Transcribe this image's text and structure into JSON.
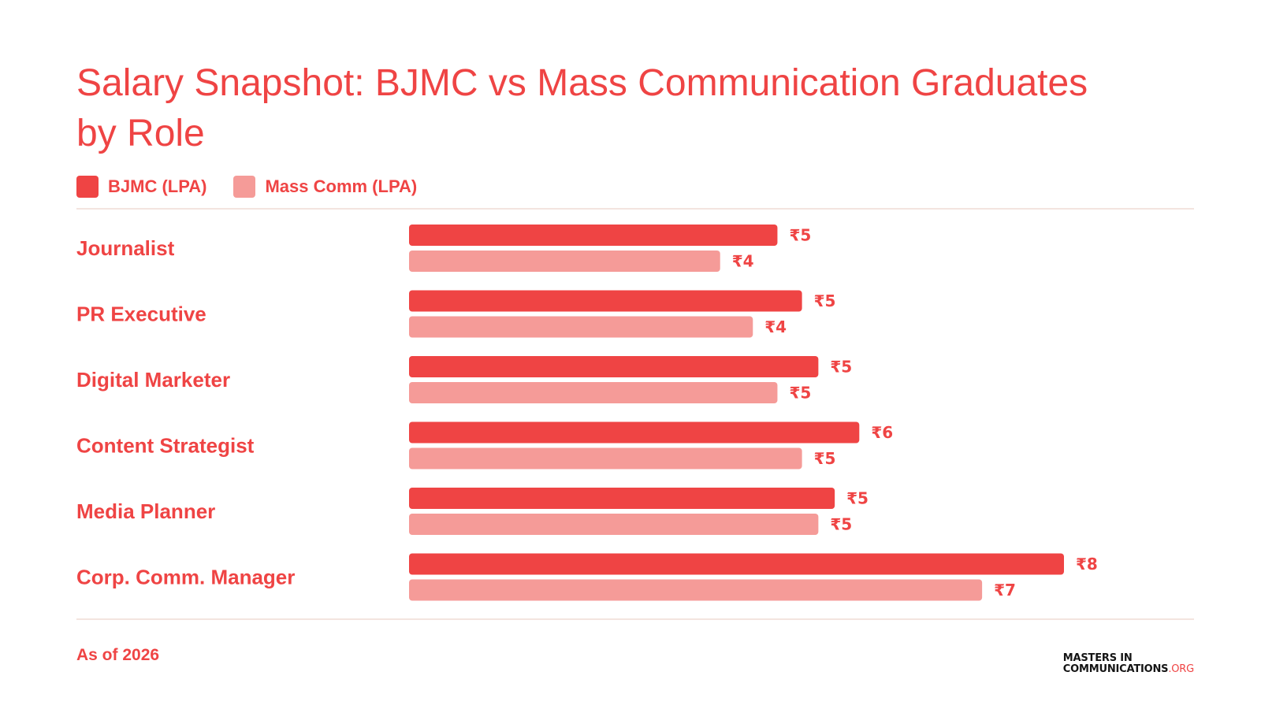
{
  "header": {
    "title": "Salary Snapshot: BJMC vs Mass Communication Graduates by Role"
  },
  "legend": [
    {
      "label": "BJMC (LPA)",
      "color": "#ef4444"
    },
    {
      "label": "Mass Comm (LPA)",
      "color": "#f59b98"
    }
  ],
  "chart_data": {
    "type": "bar",
    "orientation": "horizontal",
    "title": "Salary Snapshot: BJMC vs Mass Communication Graduates by Role",
    "categories": [
      "Journalist",
      "PR Executive",
      "Digital Marketer",
      "Content Strategist",
      "Media Planner",
      "Corp. Comm. Manager"
    ],
    "series": [
      {
        "name": "BJMC (LPA)",
        "color": "#ef4444",
        "values": [
          4.5,
          4.8,
          5.0,
          5.5,
          5.2,
          8.0
        ],
        "labels": [
          "₹5",
          "₹5",
          "₹5",
          "₹6",
          "₹5",
          "₹8"
        ]
      },
      {
        "name": "Mass Comm (LPA)",
        "color": "#f59b98",
        "values": [
          3.8,
          4.2,
          4.5,
          4.8,
          5.0,
          7.0
        ],
        "labels": [
          "₹4",
          "₹4",
          "₹5",
          "₹5",
          "₹5",
          "₹7"
        ]
      }
    ],
    "xlim": [
      0,
      8.0
    ],
    "grid": false,
    "legend_position": "top-left"
  },
  "footer": {
    "note": "As of 2026",
    "brand_line1": "MASTERS IN",
    "brand_line2": "COMMUNICATIONS",
    "brand_suffix": ".ORG"
  },
  "colors": {
    "accent": "#ef4444",
    "accent_light": "#f59b98",
    "divider": "#f3e4df"
  }
}
